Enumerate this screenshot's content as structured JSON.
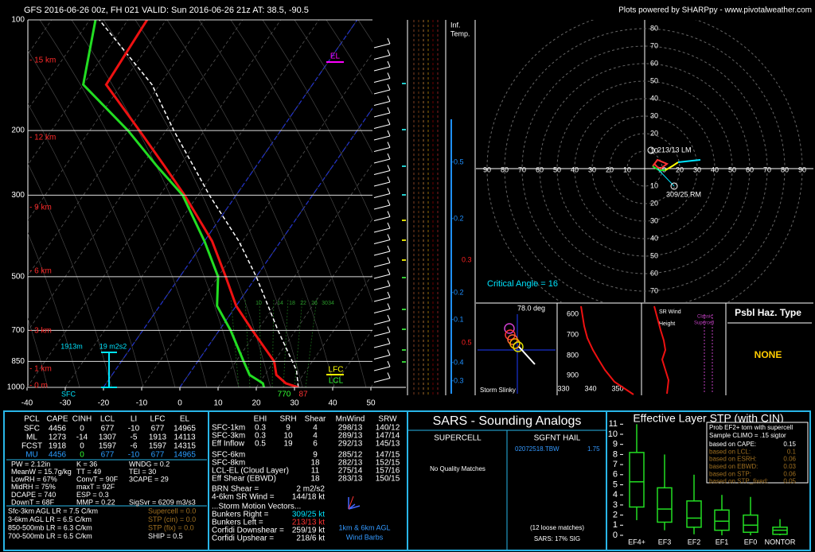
{
  "header": {
    "left": "GFS 2016-06-26 00z, FH 021   VALID: Sun 2016-06-26 21z   AT: 38.5, -90.5",
    "right": "Plots powered by SHARPpy - www.pivotalweather.com"
  },
  "skewt": {
    "pressure_ticks": [
      100,
      200,
      300,
      500,
      700,
      850,
      1000
    ],
    "temp_ticks": [
      -40,
      -30,
      -20,
      -10,
      0,
      10,
      20,
      30,
      40,
      50
    ],
    "height_labels": [
      "- 15 km",
      "- 12 km",
      "- 9 km",
      "- 6 km",
      "- 3 km",
      "- 1 km",
      "- 0 m"
    ],
    "temperature": {
      "p": [
        1000,
        975,
        925,
        850,
        700,
        600,
        500,
        400,
        300,
        250,
        200,
        150,
        100
      ],
      "t": [
        31,
        27,
        23,
        20,
        8.7,
        0,
        -8,
        -18,
        -33.5,
        -44,
        -57,
        -74,
        -75
      ]
    },
    "dewpoint": {
      "p": [
        1000,
        975,
        925,
        850,
        700,
        600,
        500,
        400,
        300,
        250,
        200,
        150,
        100
      ],
      "t": [
        22,
        21,
        16,
        12,
        3,
        -5,
        -10,
        -20,
        -34,
        -46,
        -60,
        -80,
        -88.5
      ]
    },
    "parcel": {
      "p": [
        1000,
        900,
        700,
        500,
        400,
        300,
        200,
        150,
        100
      ],
      "t": [
        31,
        27.5,
        15.4,
        0,
        -11,
        -27,
        -48,
        -62,
        -87.5
      ]
    },
    "annotations": {
      "el": "EL",
      "lfc": "LFC",
      "lcl": "LCL",
      "sfc": "SFC",
      "eff_inflow_height": "1913m",
      "eff_srh": "19 m2s2",
      "lcl_value": "770",
      "t_value": "87"
    },
    "mixing_ratio_labels": [
      10,
      14,
      18,
      22,
      26,
      30,
      34
    ]
  },
  "advection": {
    "title": [
      "Inf.",
      "Temp."
    ],
    "values": [
      -0.5,
      -0.2,
      0.3,
      -0.2,
      -0.1,
      0.5,
      -0.4,
      -0.3
    ]
  },
  "hodograph": {
    "rings": [
      10,
      20,
      30,
      40,
      50,
      60,
      70,
      80,
      90
    ],
    "lm": "213/13 LM",
    "rm": "309/25 RM",
    "critical_angle": "Critical Angle = 16"
  },
  "slinky": {
    "angle": "78.0 deg",
    "title": "Storm Slinky"
  },
  "theta_e": {
    "p_ticks": [
      600,
      700,
      800,
      900
    ],
    "t_ticks": [
      330,
      340,
      350
    ]
  },
  "sr_wind": {
    "title": "SR Wind",
    "height": "Height",
    "note": [
      "Classic",
      "Supercell"
    ]
  },
  "hazard": {
    "title": "Psbl Haz. Type",
    "value": "NONE"
  },
  "thermo_table": {
    "headers": [
      "PCL",
      "CAPE",
      "CINH",
      "LCL",
      "LI",
      "LFC",
      "EL"
    ],
    "rows": [
      [
        "SFC",
        "4456",
        "0",
        "677",
        "-10",
        "677",
        "14965"
      ],
      [
        "ML",
        "1273",
        "-14",
        "1307",
        "-5",
        "1913",
        "14113"
      ],
      [
        "FCST",
        "1918",
        "0",
        "1597",
        "-6",
        "1597",
        "14315"
      ],
      [
        "MU",
        "4456",
        "0",
        "677",
        "-10",
        "677",
        "14965"
      ]
    ]
  },
  "indices": [
    [
      "PW = 2.12in",
      "K = 36",
      "WNDG = 0.2"
    ],
    [
      "MeanW = 15.7g/kg",
      "TT = 49",
      "TEI = 30"
    ],
    [
      "LowRH = 67%",
      "ConvT = 90F",
      "3CAPE = 29"
    ],
    [
      "MidRH = 75%",
      "maxT = 92F"
    ],
    [
      "DCAPE = 740",
      "ESP = 0.3"
    ],
    [
      "DownT = 68F",
      "MMP = 0.22",
      "SigSvr = 6209 m3/s3"
    ]
  ],
  "lapse_rates": [
    "Sfc-3km AGL LR = 7.5 C/km",
    "3-6km AGL LR = 6.5 C/km",
    "850-500mb LR = 6.3 C/km",
    "700-500mb LR = 6.5 C/km"
  ],
  "composites": [
    "Supercell = 0.0",
    "STP (cin) = 0.0",
    "STP (fix) = 0.0",
    "SHIP = 0.5"
  ],
  "kinematics": {
    "headers": [
      "EHI",
      "SRH",
      "Shear",
      "MnWind",
      "SRW"
    ],
    "rows": [
      [
        "SFC-1km",
        "0.3",
        "9",
        "4",
        "298/13",
        "140/12"
      ],
      [
        "SFC-3km",
        "0.3",
        "10",
        "4",
        "289/13",
        "147/14"
      ],
      [
        "Eff Inflow",
        "0.5",
        "19",
        "6",
        "292/13",
        "145/13"
      ],
      [
        "SFC-6km",
        null,
        null,
        "9",
        "285/12",
        "147/15"
      ],
      [
        "SFC-8km",
        null,
        null,
        "18",
        "282/13",
        "152/15"
      ],
      [
        "LCL-EL (Cloud Layer)",
        null,
        null,
        "11",
        "275/14",
        "157/16"
      ],
      [
        "Eff Shear (EBWD)",
        null,
        null,
        "18",
        "283/13",
        "150/15"
      ]
    ],
    "extra": [
      [
        "BRN Shear =",
        "2 m2/s2"
      ],
      [
        "4-6km SR Wind =",
        "144/18 kt"
      ]
    ],
    "motion_title": "...Storm Motion Vectors...",
    "motions": [
      [
        "Bunkers Right =",
        "309/25 kt"
      ],
      [
        "Bunkers Left =",
        "213/13 kt"
      ],
      [
        "Corfidi Downshear =",
        "259/19 kt"
      ],
      [
        "Corfidi Upshear =",
        "218/6 kt"
      ]
    ],
    "barb_caption": [
      "1km & 6km AGL",
      "Wind Barbs"
    ]
  },
  "sars": {
    "title": "SARS - Sounding Analogs",
    "supercell": "SUPERCELL",
    "hail": "SGFNT HAIL",
    "supercell_matches": "No Quality Matches",
    "hail_match": "02072518.TBW",
    "hail_size": "1.75",
    "loose": "(12 loose matches)",
    "sig": "SARS: 17% SIG"
  },
  "stp": {
    "title": "Effective Layer STP (with CIN)",
    "yticks": [
      0,
      1,
      2,
      3,
      4,
      5,
      6,
      7,
      8,
      9,
      10,
      11
    ],
    "categories": [
      "EF4+",
      "EF3",
      "EF2",
      "EF1",
      "EF0",
      "NONTOR"
    ],
    "boxes": [
      {
        "min": 1.5,
        "q1": 2.8,
        "median": 5.3,
        "q3": 8.2,
        "max": 11
      },
      {
        "min": 0.5,
        "q1": 1.3,
        "median": 2.6,
        "q3": 4.7,
        "max": 8
      },
      {
        "min": 0.1,
        "q1": 0.8,
        "median": 1.7,
        "q3": 3.4,
        "max": 6
      },
      {
        "min": 0,
        "q1": 0.5,
        "median": 1.4,
        "q3": 2.5,
        "max": 4
      },
      {
        "min": 0,
        "q1": 0.3,
        "median": 1,
        "q3": 2,
        "max": 3.8
      },
      {
        "min": 0,
        "q1": 0.1,
        "median": 0.5,
        "q3": 0.8,
        "max": 1.6
      }
    ],
    "legend": {
      "title": "Prob EF2+ torn with supercell",
      "climo": "Sample CLIMO = .15 sigtor",
      "rows": [
        [
          "based on CAPE:",
          "0.15"
        ],
        [
          "based on LCL:",
          "0.1"
        ],
        [
          "based on ESRH:",
          "0.06"
        ],
        [
          "based on EBWD:",
          "0.03"
        ],
        [
          "based on STP:",
          "0.06"
        ],
        [
          "based on STP_fixed:",
          "0.05"
        ]
      ]
    }
  }
}
